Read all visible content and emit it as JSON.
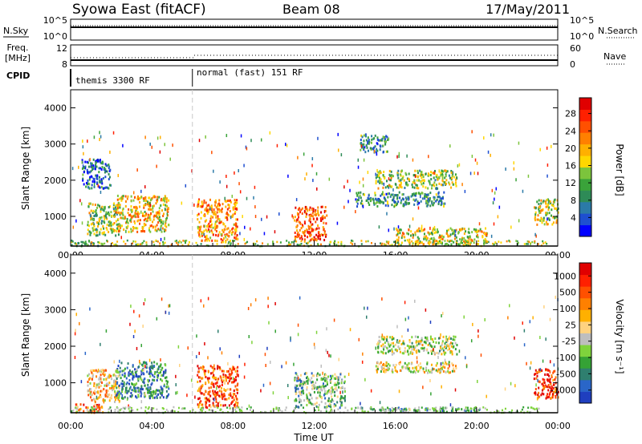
{
  "header": {
    "station": "Syowa East (fitACF)",
    "beam": "Beam 08",
    "date": "17/May/2011"
  },
  "top_panels": {
    "nsky_label": "N.Sky",
    "nsearch_label": "N.Search",
    "left_ticks_nsky": [
      "10^5",
      "10^0"
    ],
    "right_ticks_nsky": [
      "10^5",
      "10^0"
    ],
    "freq_label_line1": "Freq.",
    "freq_label_line2": "[MHz]",
    "left_ticks_freq": [
      "12",
      "8"
    ],
    "right_ticks_nave": [
      "60",
      "0"
    ],
    "nave_label": "Nave",
    "cpid_label": "CPID",
    "modes": [
      "themis 3300 RF",
      "normal (fast) 151 RF"
    ],
    "mode_change_hour": 6.0
  },
  "chart_data": [
    {
      "type": "heatmap",
      "title": "",
      "xlabel": "",
      "ylabel": "Slant Range [km]",
      "xlim": [
        0,
        24
      ],
      "ylim": [
        180,
        4500
      ],
      "x_ticks": [
        "00:00",
        "04:00",
        "08:00",
        "12:00",
        "16:00",
        "20:00",
        "00:00"
      ],
      "y_ticks": [
        "1000",
        "2000",
        "3000",
        "4000"
      ],
      "colorbar": {
        "label": "Power [dB]",
        "ticks": [
          "4",
          "8",
          "12",
          "16",
          "20",
          "24",
          "28"
        ],
        "colors": [
          "#0000ff",
          "#1e4fd0",
          "#2b7aa8",
          "#2e8b57",
          "#3aa33a",
          "#7cc43c",
          "#ffd700",
          "#ffb000",
          "#ff8000",
          "#ff5000",
          "#ff2000",
          "#e00000"
        ]
      },
      "echo_regions": [
        {
          "t0": 0.2,
          "t1": 1.6,
          "r0": 200,
          "r1": 320,
          "value_level": 0.3
        },
        {
          "t0": 0.8,
          "t1": 2.4,
          "r0": 500,
          "r1": 1400,
          "value_level": 0.45
        },
        {
          "t0": 2.2,
          "t1": 4.8,
          "r0": 600,
          "r1": 1600,
          "value_level": 0.6
        },
        {
          "t0": 0.5,
          "t1": 2.0,
          "r0": 1800,
          "r1": 2600,
          "value_level": 0.2
        },
        {
          "t0": 6.2,
          "t1": 8.2,
          "r0": 350,
          "r1": 1500,
          "value_level": 0.7
        },
        {
          "t0": 11.0,
          "t1": 12.6,
          "r0": 350,
          "r1": 1300,
          "value_level": 0.8
        },
        {
          "t0": 14.2,
          "t1": 15.6,
          "r0": 2800,
          "r1": 3300,
          "value_level": 0.3
        },
        {
          "t0": 14.0,
          "t1": 18.5,
          "r0": 1300,
          "r1": 1700,
          "value_level": 0.3
        },
        {
          "t0": 15.0,
          "t1": 19.0,
          "r0": 1800,
          "r1": 2300,
          "value_level": 0.45
        },
        {
          "t0": 16.0,
          "t1": 20.5,
          "r0": 250,
          "r1": 700,
          "value_level": 0.55
        },
        {
          "t0": 22.8,
          "t1": 24.0,
          "r0": 800,
          "r1": 1500,
          "value_level": 0.5
        }
      ]
    },
    {
      "type": "heatmap",
      "title": "",
      "xlabel": "Time UT",
      "ylabel": "Slant Range [km]",
      "xlim": [
        0,
        24
      ],
      "ylim": [
        180,
        4500
      ],
      "x_ticks": [
        "00:00",
        "04:00",
        "08:00",
        "12:00",
        "16:00",
        "20:00",
        "00:00"
      ],
      "y_ticks": [
        "1000",
        "2000",
        "3000",
        "4000"
      ],
      "colorbar": {
        "label": "Velocity [m s⁻¹]",
        "ticks": [
          "1000",
          "500",
          "100",
          "25",
          "-25",
          "-100",
          "-500",
          "-1000"
        ],
        "colors": [
          "#1f3fbf",
          "#2a66c8",
          "#2f7f6f",
          "#35a235",
          "#7fd33c",
          "#bebebe",
          "#ffd27f",
          "#ffb000",
          "#ff8000",
          "#ff5000",
          "#ff2000",
          "#e00000"
        ]
      },
      "echo_regions": [
        {
          "t0": 0.2,
          "t1": 1.6,
          "r0": 200,
          "r1": 450,
          "value_level": 0.75
        },
        {
          "t0": 0.8,
          "t1": 2.4,
          "r0": 500,
          "r1": 1400,
          "value_level": 0.6
        },
        {
          "t0": 2.2,
          "t1": 4.8,
          "r0": 600,
          "r1": 1600,
          "value_level": 0.2
        },
        {
          "t0": 6.2,
          "t1": 8.2,
          "r0": 350,
          "r1": 1500,
          "value_level": 0.8
        },
        {
          "t0": 11.0,
          "t1": 13.5,
          "r0": 350,
          "r1": 1300,
          "value_level": 0.35
        },
        {
          "t0": 15.0,
          "t1": 19.0,
          "r0": 1300,
          "r1": 1600,
          "value_level": 0.5
        },
        {
          "t0": 15.0,
          "t1": 19.0,
          "r0": 1800,
          "r1": 2300,
          "value_level": 0.45
        },
        {
          "t0": 14.0,
          "t1": 20.5,
          "r0": 250,
          "r1": 350,
          "value_level": 0.3
        },
        {
          "t0": 22.8,
          "t1": 24.0,
          "r0": 600,
          "r1": 1400,
          "value_level": 0.85
        }
      ]
    }
  ]
}
